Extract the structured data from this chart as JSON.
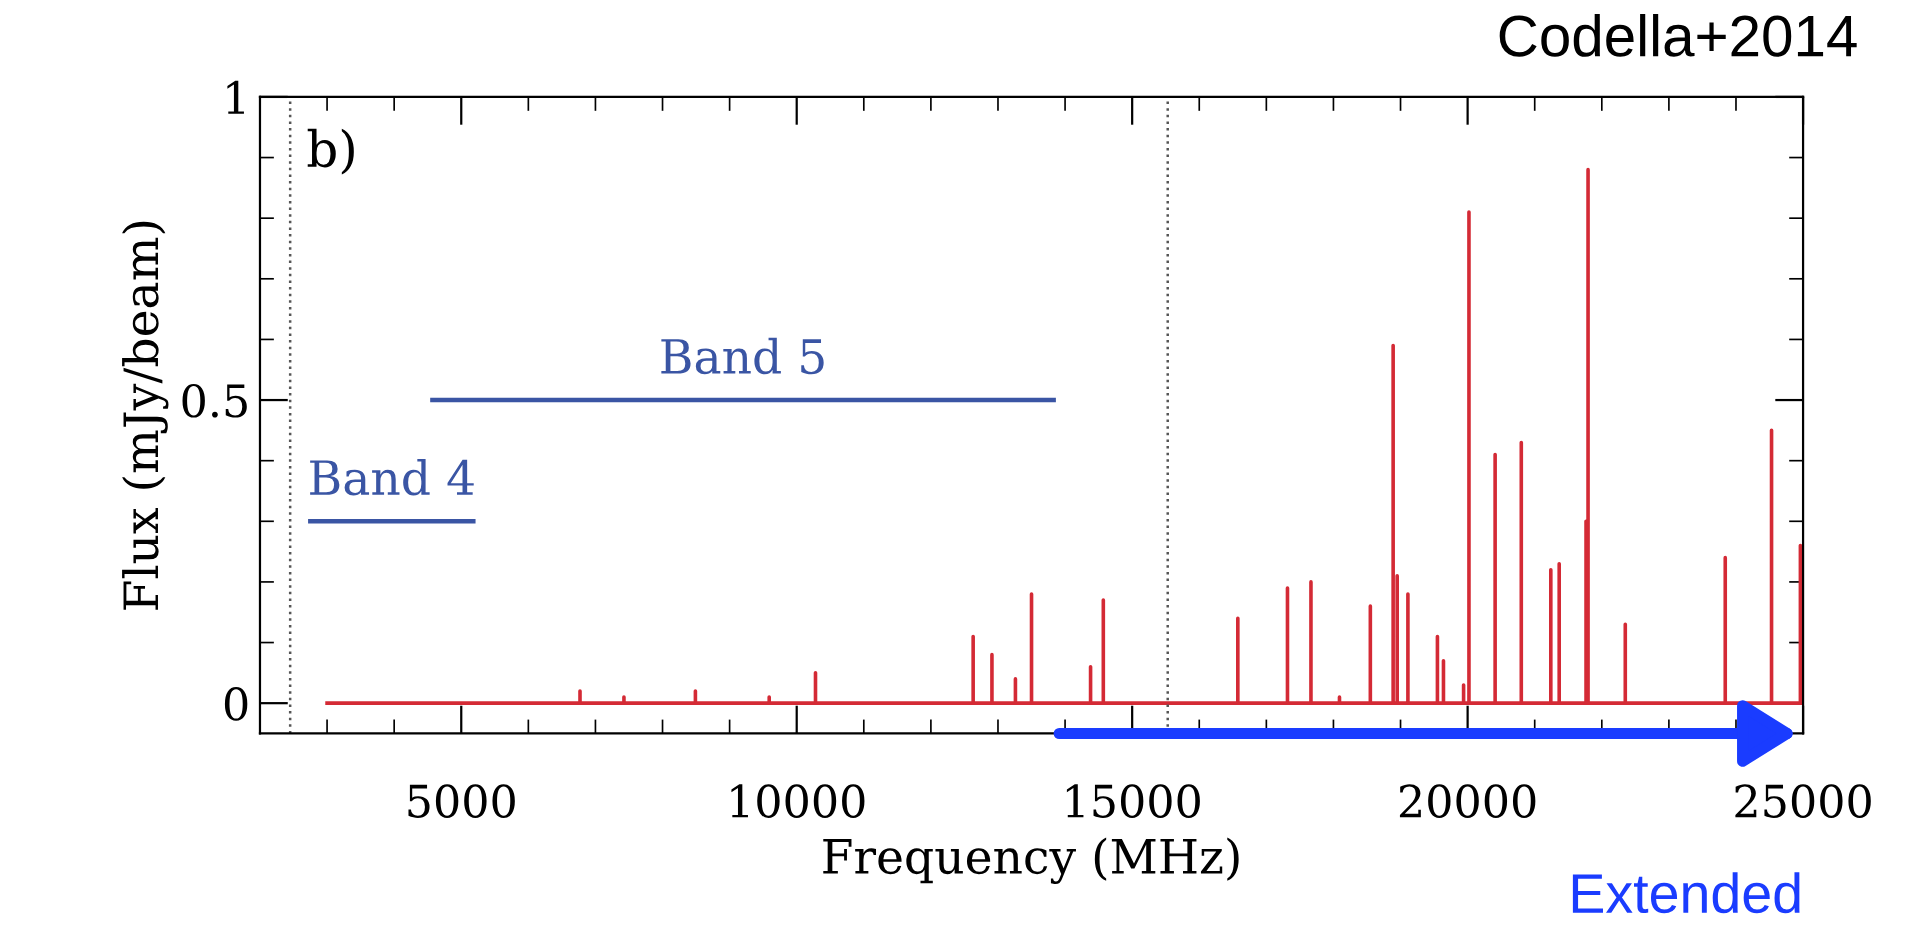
{
  "chart_data": {
    "type": "line",
    "xlabel": "Frequency (MHz)",
    "ylabel": "Flux (mJy/beam)",
    "annotations": [
      "b)",
      "Codella+2014",
      "Extended"
    ],
    "xlim": [
      2000,
      25000
    ],
    "xticks": [
      5000,
      10000,
      15000,
      20000,
      25000
    ],
    "ylim": [
      -0.05,
      1.0
    ],
    "yticks": [
      0,
      0.5,
      1
    ],
    "grid": false,
    "legend": false,
    "marker": "none",
    "line_style": "solid",
    "series": [
      {
        "color": "#d42a35",
        "x": [
          3000,
          6770,
          6770,
          6770,
          7425,
          7425,
          7425,
          8490,
          8490,
          8490,
          9590,
          9590,
          9590,
          10280,
          10280,
          10280,
          12630,
          12630,
          12630,
          12910,
          12910,
          12910,
          13260,
          13260,
          13260,
          13500,
          13500,
          13500,
          14380,
          14380,
          14380,
          14570,
          14570,
          14570,
          16575,
          16575,
          16575,
          17315,
          17315,
          17315,
          17665,
          17665,
          17665,
          18090,
          18090,
          18090,
          18550,
          18550,
          18550,
          18890,
          18890,
          18890,
          18950,
          18950,
          18950,
          19110,
          19110,
          19110,
          19550,
          19550,
          19550,
          19640,
          19640,
          19640,
          19940,
          19940,
          19940,
          20020,
          20020,
          20020,
          20410,
          20410,
          20410,
          20800,
          20800,
          20800,
          21240,
          21240,
          21240,
          21365,
          21365,
          21365,
          21765,
          21765,
          21765,
          21795,
          21795,
          21795,
          22350,
          22350,
          22350,
          23840,
          23840,
          23840,
          24530,
          24530,
          24530,
          24960,
          24960,
          24960,
          25000
        ],
        "values": [
          0,
          0,
          0.02,
          0,
          0,
          0.01,
          0,
          0,
          0.02,
          0,
          0,
          0.01,
          0,
          0,
          0.05,
          0,
          0,
          0.11,
          0,
          0,
          0.08,
          0,
          0,
          0.04,
          0,
          0,
          0.18,
          0,
          0,
          0.06,
          0,
          0,
          0.17,
          0,
          0,
          0.14,
          0,
          0,
          0.19,
          0,
          0,
          0.2,
          0,
          0,
          0.01,
          0,
          0,
          0.16,
          0,
          0,
          0.59,
          0,
          0,
          0.21,
          0,
          0,
          0.18,
          0,
          0,
          0.11,
          0,
          0,
          0.07,
          0,
          0,
          0.03,
          0,
          0,
          0.81,
          0,
          0,
          0.41,
          0,
          0,
          0.43,
          0,
          0,
          0.22,
          0,
          0,
          0.23,
          0,
          0,
          0.3,
          0,
          0,
          0.88,
          0,
          0,
          0.13,
          0,
          0,
          0.24,
          0,
          0,
          0.45,
          0,
          0,
          0.26,
          0,
          0
        ]
      },
      {
        "name": "Band 4",
        "color": "#3a55a4",
        "x": [
          2750,
          5180
        ],
        "values": [
          0.3,
          0.3
        ]
      },
      {
        "name": "Band 5",
        "color": "#3a55a4",
        "x": [
          4570,
          13830
        ],
        "values": [
          0.5,
          0.5
        ]
      }
    ],
    "ref_lines": [
      {
        "axis": "x",
        "value": 2450,
        "color": "#555555",
        "line_style": "dotted"
      },
      {
        "axis": "x",
        "value": 15530,
        "color": "#555555",
        "line_style": "dotted"
      }
    ]
  }
}
